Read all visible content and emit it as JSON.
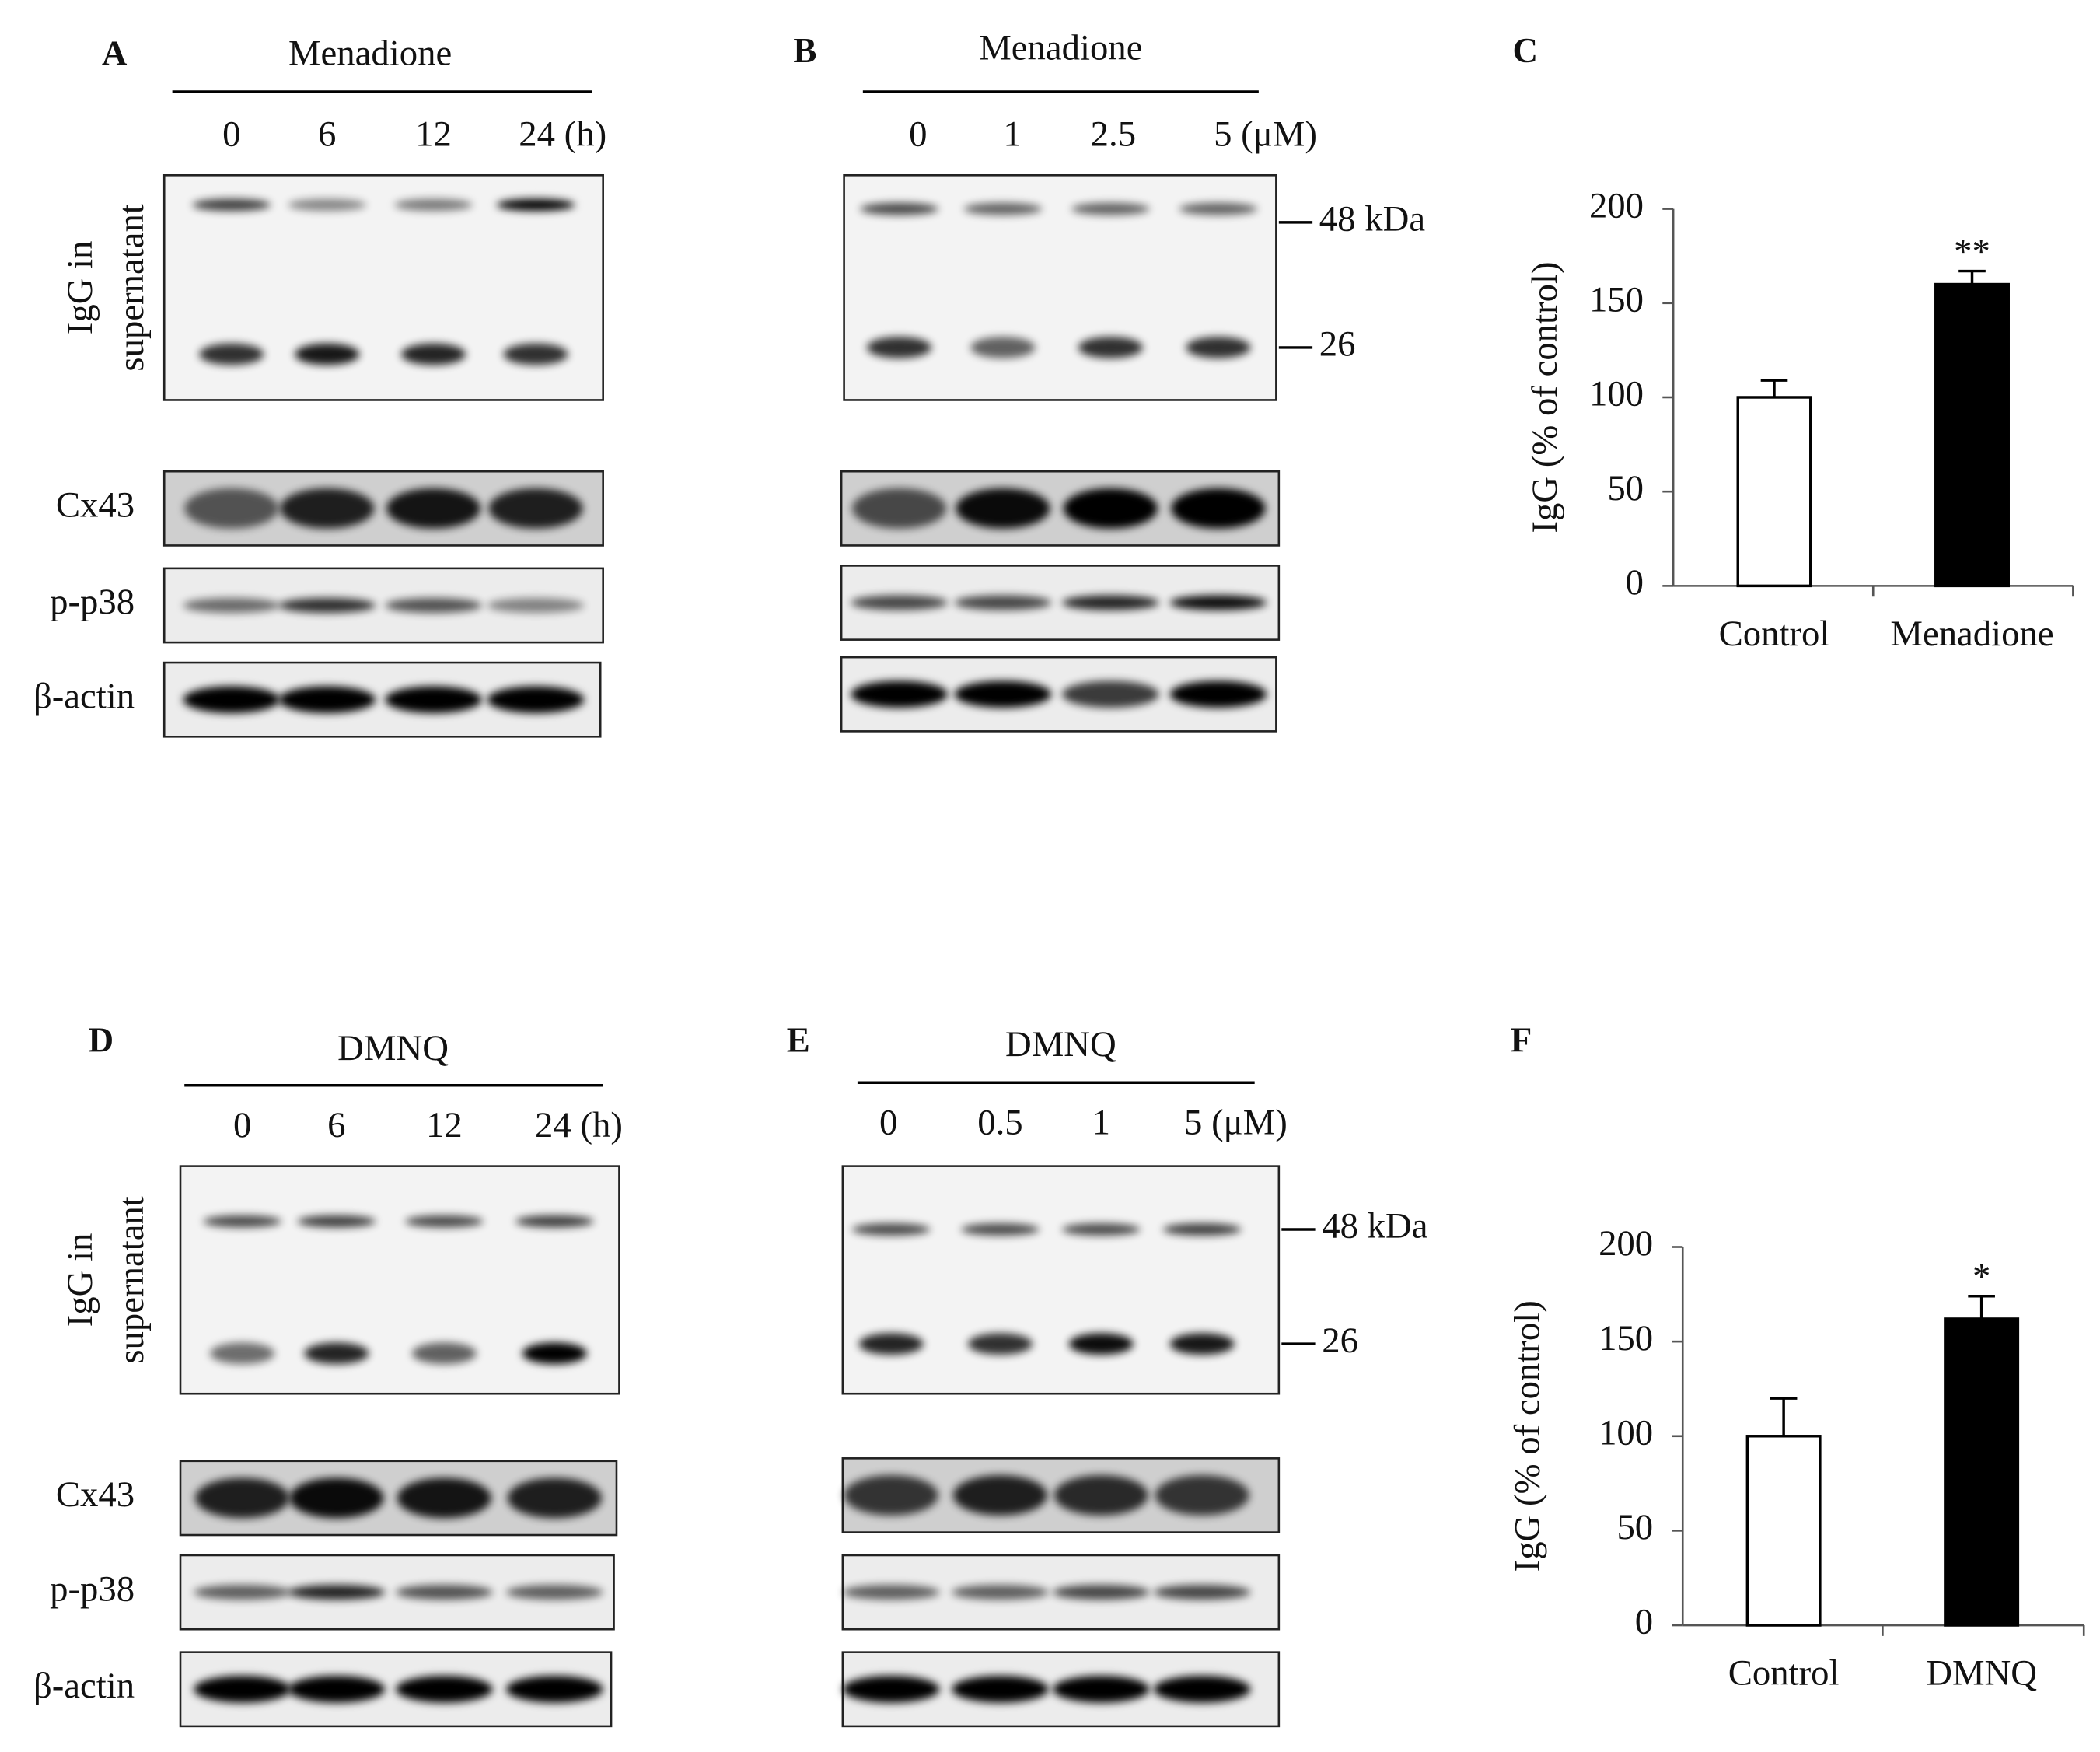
{
  "panels": [
    {
      "label": "A",
      "treatment": "Menadione",
      "lanes": [
        "0",
        "6",
        "12",
        "24 (h)"
      ],
      "igg_label": [
        "IgG in",
        "supernatant"
      ],
      "row_labels": [
        "Cx43",
        "p-p38",
        "β-actin"
      ]
    },
    {
      "label": "B",
      "treatment": "Menadione",
      "lanes": [
        "0",
        "1",
        "2.5",
        "5 (μM)"
      ],
      "markers": [
        "48 kDa",
        "26"
      ]
    },
    {
      "label": "D",
      "treatment": "DMNQ",
      "lanes": [
        "0",
        "6",
        "12",
        "24 (h)"
      ],
      "igg_label": [
        "IgG in",
        "supernatant"
      ],
      "row_labels": [
        "Cx43",
        "p-p38",
        "β-actin"
      ]
    },
    {
      "label": "E",
      "treatment": "DMNQ",
      "lanes": [
        "0",
        "0.5",
        "1",
        "5 (μM)"
      ],
      "markers": [
        "48 kDa",
        "26"
      ]
    }
  ],
  "chart_data": [
    {
      "type": "bar",
      "label": "C",
      "y_label": "IgG (% of control)",
      "categories": [
        "Control",
        "Menadione"
      ],
      "values": [
        100,
        160
      ],
      "errors": [
        9,
        7
      ],
      "significance": [
        null,
        "**"
      ],
      "colors": [
        "#ffffff",
        "#000000"
      ],
      "ylim": [
        0,
        200
      ],
      "yticks": [
        0,
        50,
        100,
        150,
        200
      ]
    },
    {
      "type": "bar",
      "label": "F",
      "y_label": "IgG (% of control)",
      "categories": [
        "Control",
        "DMNQ"
      ],
      "values": [
        100,
        162
      ],
      "errors": [
        20,
        12
      ],
      "significance": [
        null,
        "*"
      ],
      "colors": [
        "#ffffff",
        "#000000"
      ],
      "ylim": [
        0,
        200
      ],
      "yticks": [
        0,
        50,
        100,
        150,
        200
      ]
    }
  ]
}
